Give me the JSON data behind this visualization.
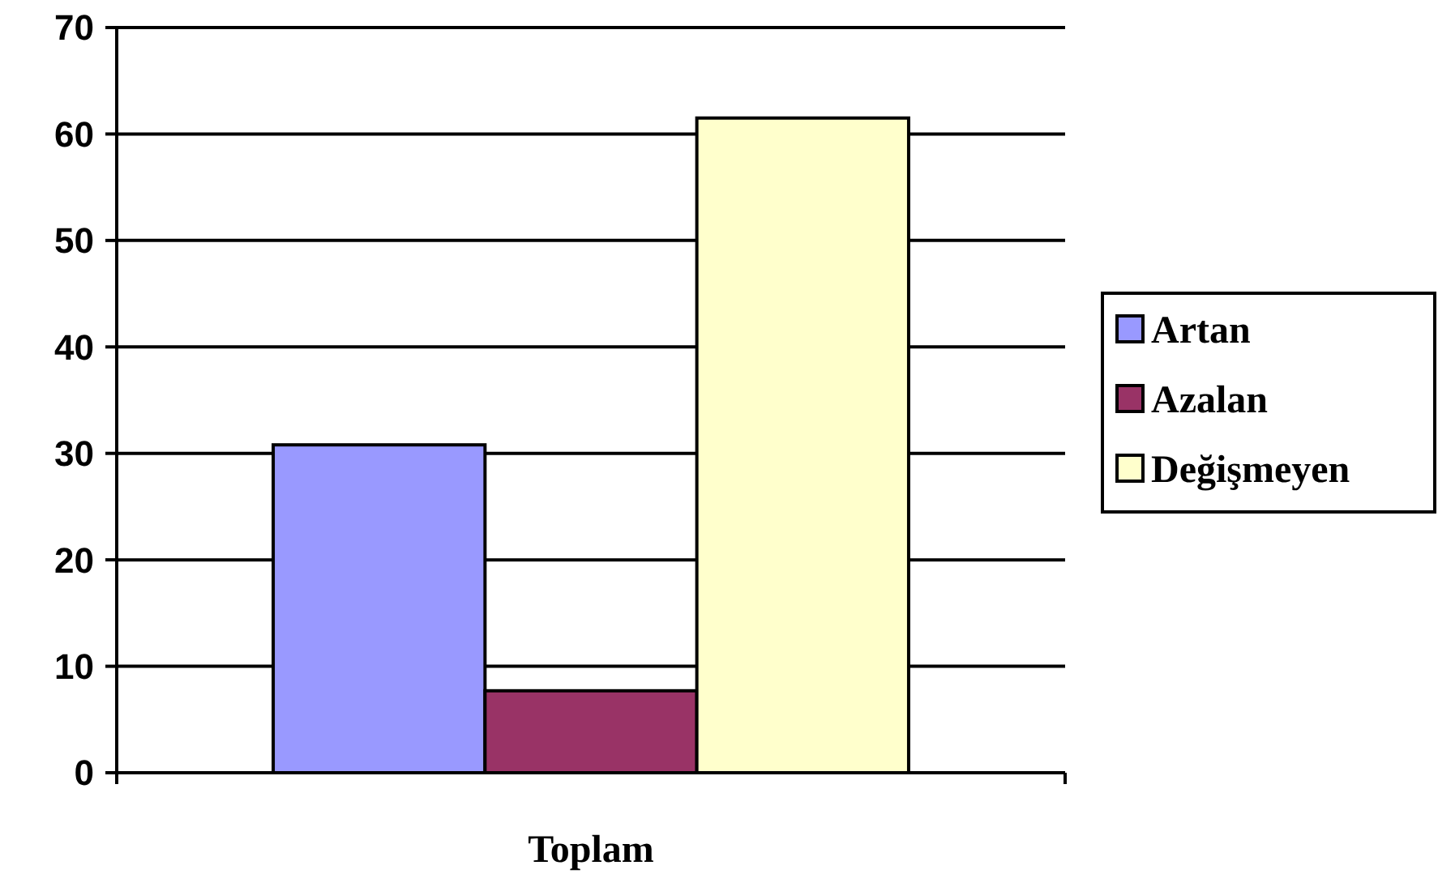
{
  "chart_data": {
    "type": "bar",
    "categories": [
      "Toplam"
    ],
    "series": [
      {
        "name": "Artan",
        "color": "#9999ff",
        "values": [
          30.8
        ]
      },
      {
        "name": "Azalan",
        "color": "#993366",
        "values": [
          7.7
        ]
      },
      {
        "name": "Değişmeyen",
        "color": "#ffffcc",
        "values": [
          61.5
        ]
      }
    ],
    "ylim": [
      0,
      70
    ],
    "yticks": [
      0,
      10,
      20,
      30,
      40,
      50,
      60,
      70
    ],
    "grid": "y",
    "legend": "right"
  }
}
